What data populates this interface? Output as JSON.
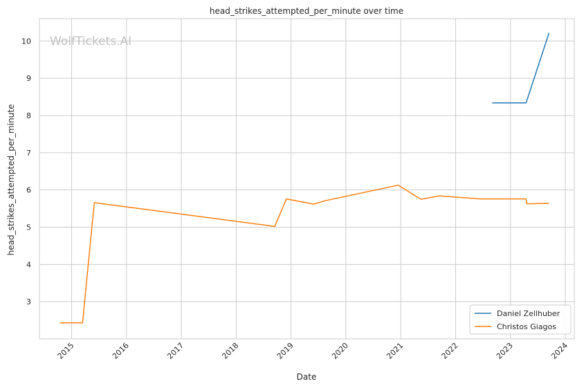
{
  "chart_data": {
    "type": "line",
    "title": "head_strikes_attempted_per_minute over time",
    "xlabel": "Date",
    "ylabel": "head_strikes_attempted_per_minute",
    "watermark": "WolfTickets.AI",
    "x_ticks": [
      "2015",
      "2016",
      "2017",
      "2018",
      "2019",
      "2020",
      "2021",
      "2022",
      "2023",
      "2024"
    ],
    "y_ticks": [
      3,
      4,
      5,
      6,
      7,
      8,
      9,
      10
    ],
    "xlim": [
      "2014-06-01",
      "2024-03-01"
    ],
    "ylim": [
      2.0,
      10.6
    ],
    "grid": true,
    "legend_position": "lower-right",
    "series": [
      {
        "name": "Daniel Zellhuber",
        "color": "#1f77b4",
        "points": [
          {
            "x": "2022-09-01",
            "y": 8.34
          },
          {
            "x": "2023-04-15",
            "y": 8.34
          },
          {
            "x": "2023-09-15",
            "y": 10.22
          }
        ]
      },
      {
        "name": "Christos Giagos",
        "color": "#ff7f0e",
        "points": [
          {
            "x": "2014-10-15",
            "y": 2.43
          },
          {
            "x": "2015-03-15",
            "y": 2.43
          },
          {
            "x": "2015-06-01",
            "y": 5.66
          },
          {
            "x": "2018-09-15",
            "y": 5.02
          },
          {
            "x": "2018-12-01",
            "y": 5.76
          },
          {
            "x": "2019-06-01",
            "y": 5.62
          },
          {
            "x": "2019-08-15",
            "y": 5.71
          },
          {
            "x": "2020-12-15",
            "y": 6.13
          },
          {
            "x": "2021-05-15",
            "y": 5.75
          },
          {
            "x": "2021-09-15",
            "y": 5.84
          },
          {
            "x": "2022-06-15",
            "y": 5.76
          },
          {
            "x": "2023-04-15",
            "y": 5.76
          },
          {
            "x": "2023-04-20",
            "y": 5.63
          },
          {
            "x": "2023-09-15",
            "y": 5.64
          }
        ]
      }
    ]
  }
}
